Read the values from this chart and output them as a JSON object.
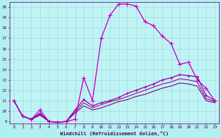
{
  "xlabel": "Windchill (Refroidissement éolien,°C)",
  "ylabel": "",
  "background_color": "#b0f0f0",
  "plot_bg_color": "#c0f4f4",
  "grid_color": "#90d8d8",
  "xlim": [
    -0.5,
    23.5
  ],
  "ylim": [
    8.8,
    20.5
  ],
  "xticks": [
    0,
    1,
    2,
    3,
    4,
    5,
    6,
    7,
    8,
    9,
    10,
    11,
    12,
    13,
    14,
    15,
    16,
    17,
    18,
    19,
    20,
    21,
    22,
    23
  ],
  "yticks": [
    9,
    10,
    11,
    12,
    13,
    14,
    15,
    16,
    17,
    18,
    19,
    20
  ],
  "lines": [
    {
      "x": [
        0,
        1,
        2,
        3,
        4,
        5,
        6,
        7,
        8,
        9,
        10,
        11,
        12,
        13,
        14,
        15,
        16,
        17,
        18,
        19,
        20,
        21,
        22,
        23
      ],
      "y": [
        11.0,
        9.5,
        9.2,
        10.1,
        9.0,
        8.9,
        9.0,
        9.2,
        13.2,
        11.0,
        17.0,
        19.2,
        20.3,
        20.3,
        20.1,
        18.6,
        18.2,
        17.2,
        16.5,
        14.5,
        14.7,
        13.0,
        12.2,
        11.0
      ],
      "color": "#cc00cc",
      "marker": "+",
      "ms": 4,
      "lw": 1.0
    },
    {
      "x": [
        0,
        1,
        2,
        3,
        4,
        5,
        6,
        7,
        8,
        9,
        10,
        11,
        12,
        13,
        14,
        15,
        16,
        17,
        18,
        19,
        20,
        21,
        22,
        23
      ],
      "y": [
        11.0,
        9.5,
        9.2,
        9.8,
        9.0,
        8.9,
        9.0,
        10.1,
        11.1,
        10.5,
        10.8,
        11.0,
        11.3,
        11.7,
        12.0,
        12.3,
        12.6,
        13.0,
        13.2,
        13.5,
        13.4,
        13.3,
        11.5,
        11.0
      ],
      "color": "#aa00aa",
      "marker": "+",
      "ms": 3,
      "lw": 1.0
    },
    {
      "x": [
        0,
        1,
        2,
        3,
        4,
        5,
        6,
        7,
        8,
        9,
        10,
        11,
        12,
        13,
        14,
        15,
        16,
        17,
        18,
        19,
        20,
        21,
        22,
        23
      ],
      "y": [
        11.0,
        9.5,
        9.2,
        9.7,
        9.0,
        8.9,
        9.0,
        9.9,
        10.8,
        10.3,
        10.6,
        10.9,
        11.1,
        11.4,
        11.7,
        12.0,
        12.3,
        12.6,
        12.8,
        13.1,
        13.0,
        12.8,
        11.2,
        10.9
      ],
      "color": "#990099",
      "marker": null,
      "ms": 0,
      "lw": 0.8
    },
    {
      "x": [
        0,
        1,
        2,
        3,
        4,
        5,
        6,
        7,
        8,
        9,
        10,
        11,
        12,
        13,
        14,
        15,
        16,
        17,
        18,
        19,
        20,
        21,
        22,
        23
      ],
      "y": [
        11.0,
        9.5,
        9.2,
        9.6,
        9.0,
        8.9,
        9.0,
        9.8,
        10.5,
        10.1,
        10.3,
        10.6,
        10.9,
        11.1,
        11.4,
        11.6,
        11.9,
        12.2,
        12.4,
        12.7,
        12.6,
        12.4,
        11.0,
        10.8
      ],
      "color": "#770077",
      "marker": null,
      "ms": 0,
      "lw": 0.8
    }
  ]
}
